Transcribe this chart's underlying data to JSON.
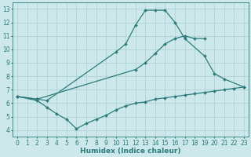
{
  "line1_x": [
    0,
    2,
    3,
    10,
    11,
    12,
    13,
    14,
    15,
    16,
    17,
    19,
    20,
    21,
    23
  ],
  "line1_y": [
    6.5,
    6.3,
    6.2,
    9.8,
    10.4,
    11.8,
    12.9,
    12.9,
    12.9,
    12.0,
    10.8,
    9.5,
    8.2,
    7.8,
    7.2
  ],
  "line2_x": [
    0,
    2,
    12,
    13,
    14,
    15,
    16,
    17,
    18,
    19
  ],
  "line2_y": [
    6.5,
    6.3,
    8.5,
    9.0,
    9.7,
    10.4,
    10.8,
    11.0,
    10.8,
    10.8
  ],
  "line3_x": [
    0,
    2,
    3,
    4,
    5,
    6,
    7,
    8,
    9,
    10,
    11,
    12,
    13,
    14,
    15,
    16,
    17,
    18,
    19,
    20,
    21,
    22,
    23
  ],
  "line3_y": [
    6.5,
    6.2,
    5.7,
    5.2,
    4.8,
    4.1,
    4.5,
    4.8,
    5.1,
    5.5,
    5.8,
    6.0,
    6.1,
    6.3,
    6.4,
    6.5,
    6.6,
    6.7,
    6.8,
    6.9,
    7.0,
    7.1,
    7.2
  ],
  "line_color": "#2d7b7b",
  "bg_color": "#cce8ea",
  "grid_color": "#aacfd2",
  "xlabel": "Humidex (Indice chaleur)",
  "xlabel_fontsize": 6.5,
  "tick_fontsize": 5.5,
  "xlim": [
    -0.5,
    23.5
  ],
  "ylim": [
    3.5,
    13.5
  ],
  "yticks": [
    4,
    5,
    6,
    7,
    8,
    9,
    10,
    11,
    12,
    13
  ],
  "xticks": [
    0,
    1,
    2,
    3,
    4,
    5,
    6,
    7,
    8,
    9,
    10,
    11,
    12,
    13,
    14,
    15,
    16,
    17,
    18,
    19,
    20,
    21,
    22,
    23
  ]
}
